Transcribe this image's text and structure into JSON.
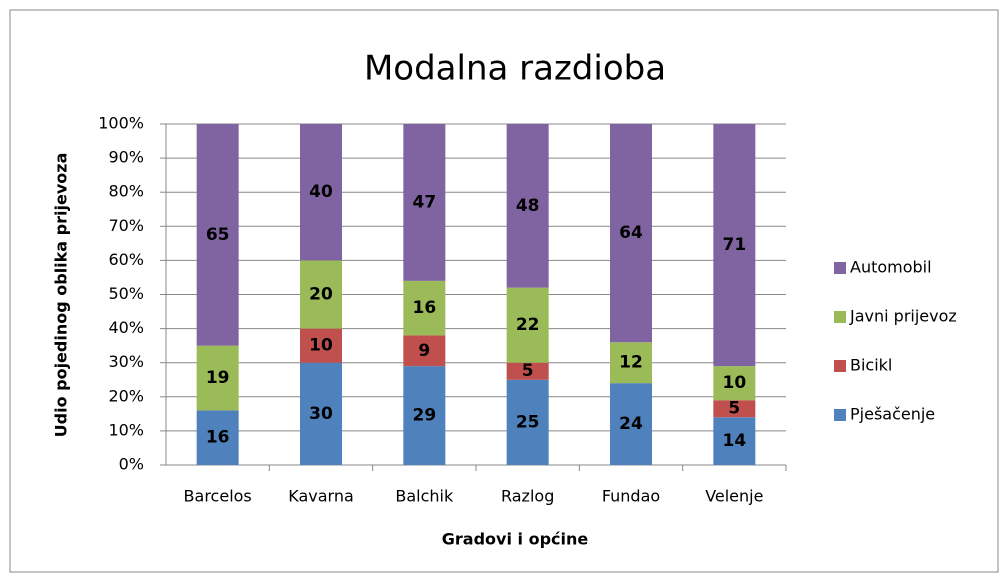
{
  "chart_data": {
    "type": "stacked_bar",
    "title": "Modalna razdioba",
    "xlabel": "Gradovi i općine",
    "ylabel": "Udio pojedinog oblika prijevoza",
    "categories": [
      "Barcelos",
      "Kavarna",
      "Balchik",
      "Razlog",
      "Fundao",
      "Velenje"
    ],
    "series": [
      {
        "name": "Pješačenje",
        "color": "#4f81bd",
        "values": [
          16,
          30,
          29,
          25,
          24,
          14
        ]
      },
      {
        "name": "Bicikl",
        "color": "#c0504d",
        "values": [
          null,
          10,
          9,
          5,
          null,
          5
        ]
      },
      {
        "name": "Javni prijevoz",
        "color": "#9bbb59",
        "values": [
          19,
          20,
          16,
          22,
          12,
          10
        ]
      },
      {
        "name": "Automobil",
        "color": "#8064a2",
        "values": [
          65,
          40,
          47,
          48,
          64,
          71
        ]
      }
    ],
    "ylim": [
      0,
      100
    ],
    "yticks": [
      {
        "value": 0,
        "label": "0%"
      },
      {
        "value": 10,
        "label": "10%"
      },
      {
        "value": 20,
        "label": "20%"
      },
      {
        "value": 30,
        "label": "30%"
      },
      {
        "value": 40,
        "label": "40%"
      },
      {
        "value": 50,
        "label": "50%"
      },
      {
        "value": 60,
        "label": "60%"
      },
      {
        "value": 70,
        "label": "70%"
      },
      {
        "value": 80,
        "label": "80%"
      },
      {
        "value": 90,
        "label": "90%"
      },
      {
        "value": 100,
        "label": "100%"
      }
    ],
    "grid": true,
    "legend": "right"
  }
}
